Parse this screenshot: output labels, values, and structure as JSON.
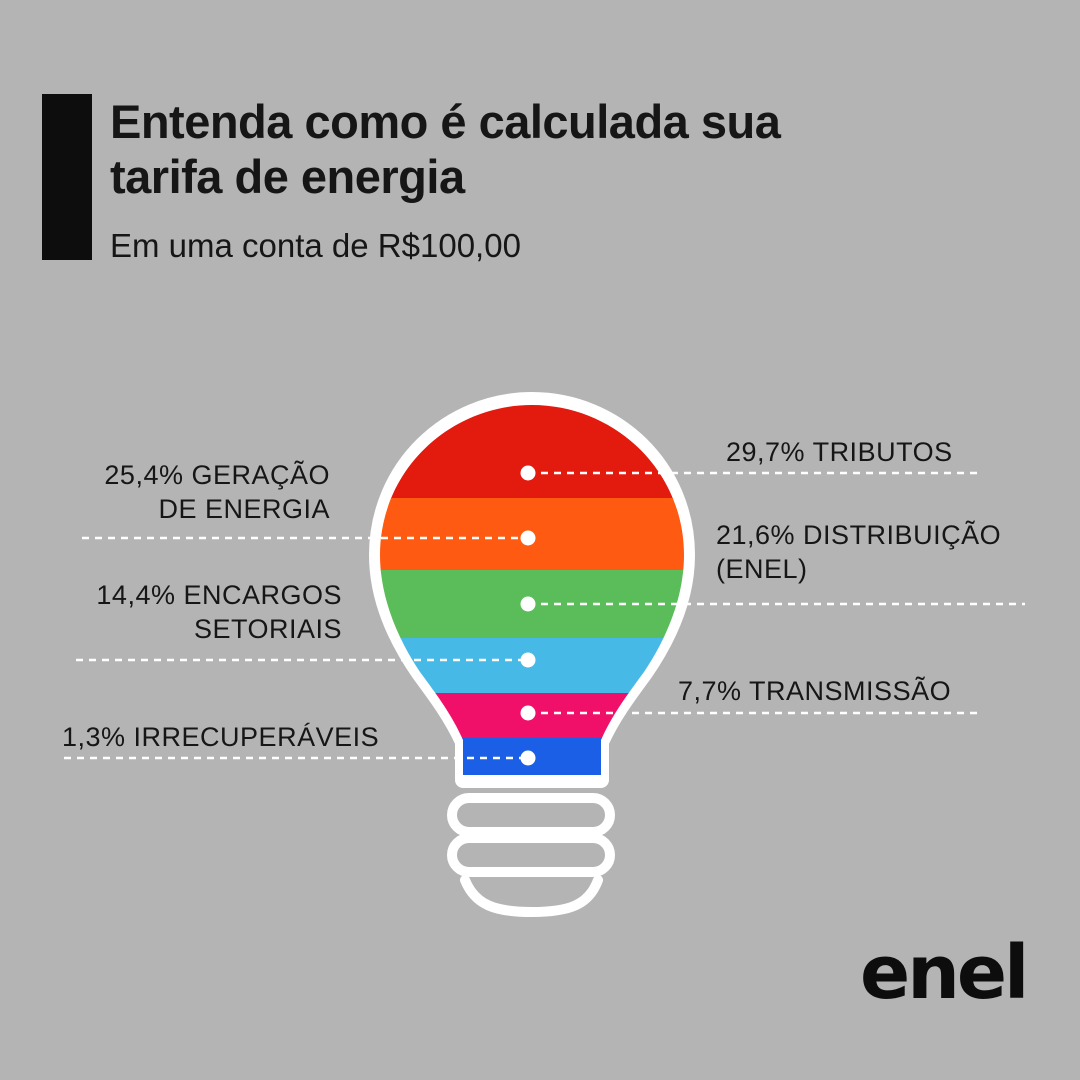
{
  "header": {
    "title": "Entenda como é calculada sua tarifa de energia",
    "subtitle": "Em uma conta de R$100,00"
  },
  "brand": {
    "logo_text": "enel"
  },
  "chart_data": {
    "type": "pie",
    "unit": "%",
    "slices": [
      {
        "label": "TRIBUTOS",
        "text": "29,7% TRIBUTOS",
        "value": 29.7,
        "color": "#e31a0e"
      },
      {
        "label": "GERAÇÃO DE ENERGIA",
        "text_line1": "25,4% GERAÇÃO",
        "text_line2": "DE ENERGIA",
        "value": 25.4,
        "color": "#ff5a12"
      },
      {
        "label": "DISTRIBUIÇÃO (ENEL)",
        "text_line1": "21,6% DISTRIBUIÇÃO",
        "text_line2": "(ENEL)",
        "value": 21.6,
        "color": "#5bbd5a"
      },
      {
        "label": "ENCARGOS SETORIAIS",
        "text_line1": "14,4% ENCARGOS",
        "text_line2": "SETORIAIS",
        "value": 14.4,
        "color": "#47b9e6"
      },
      {
        "label": "TRANSMISSÃO",
        "text": "7,7% TRANSMISSÃO",
        "value": 7.7,
        "color": "#f0106a"
      },
      {
        "label": "IRRECUPERÁVEIS",
        "text": "1,3% IRRECUPERÁVEIS",
        "value": 1.3,
        "color": "#1a5fe6"
      }
    ]
  }
}
